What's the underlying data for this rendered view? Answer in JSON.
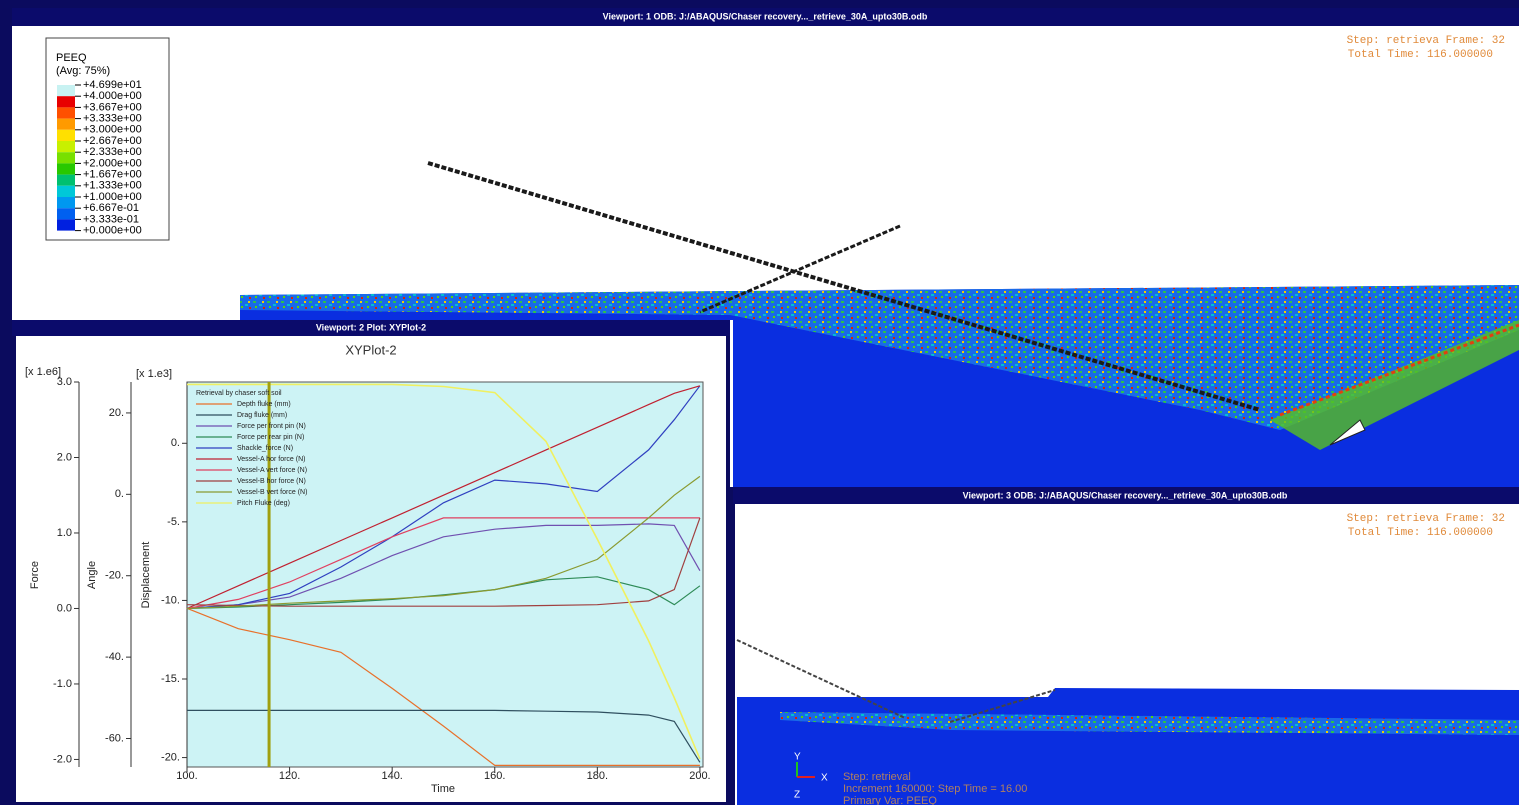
{
  "viewport1": {
    "title": "Viewport: 1    ODB: J:/ABAQUS/Chaser recovery..._retrieve_30A_upto30B.odb",
    "step": "Step: retrieva Frame: 32",
    "time": "Total Time: 116.000000"
  },
  "legend": {
    "title": "PEEQ",
    "subtitle": "(Avg: 75%)",
    "levels": [
      "+4.699e+01",
      "+4.000e+00",
      "+3.667e+00",
      "+3.333e+00",
      "+3.000e+00",
      "+2.667e+00",
      "+2.333e+00",
      "+2.000e+00",
      "+1.667e+00",
      "+1.333e+00",
      "+1.000e+00",
      "+6.667e-01",
      "+3.333e-01",
      "+0.000e+00"
    ],
    "colors": [
      "#c8f2f2",
      "#e80000",
      "#ff5000",
      "#ff9a00",
      "#ffe000",
      "#c8f000",
      "#78e000",
      "#28c800",
      "#00c070",
      "#00c8d8",
      "#0098f0",
      "#0060f0",
      "#0020e0"
    ]
  },
  "viewport2": {
    "title": "Viewport: 2    Plot: XYPlot-2"
  },
  "chart_data": {
    "type": "line",
    "title": "XYPlot-2",
    "x_label": "Time",
    "xlim": [
      100,
      200.6
    ],
    "xticks": [
      {
        "value": 100,
        "label": "100."
      },
      {
        "value": 120,
        "label": "120."
      },
      {
        "value": 140,
        "label": "140."
      },
      {
        "value": 160,
        "label": "160."
      },
      {
        "value": 180,
        "label": "180."
      },
      {
        "value": 200,
        "label": "200."
      }
    ],
    "axes": [
      {
        "label": "Force",
        "multiplier": "[x 1.e6]",
        "ylim": [
          -2.1,
          3.0
        ],
        "yticks": [
          {
            "value": 3,
            "label": "3.0"
          },
          {
            "value": 2,
            "label": "2.0"
          },
          {
            "value": 1,
            "label": "1.0"
          },
          {
            "value": 0,
            "label": "0.0"
          },
          {
            "value": -1,
            "label": "-1.0"
          },
          {
            "value": -2,
            "label": "-2.0"
          }
        ]
      },
      {
        "label": "Angle",
        "ylim": [
          -67,
          27.6
        ],
        "yticks": [
          {
            "value": 20,
            "label": "20."
          },
          {
            "value": 0,
            "label": "0."
          },
          {
            "value": -20,
            "label": "-20."
          },
          {
            "value": -40,
            "label": "-40."
          },
          {
            "value": -60,
            "label": "-60."
          }
        ]
      },
      {
        "label": "Displacement",
        "multiplier": "[x 1.e3]",
        "ylim": [
          -20.6,
          3.9
        ],
        "yticks": [
          {
            "value": 0,
            "label": "0."
          },
          {
            "value": -5,
            "label": "-5."
          },
          {
            "value": -10,
            "label": "-10."
          },
          {
            "value": -15,
            "label": "-15."
          },
          {
            "value": -20,
            "label": "-20."
          }
        ]
      }
    ],
    "legend_title": "Retrieval by chaser soft soil",
    "background": "#cdf3f5",
    "cursor_x": 116,
    "cursor_color": "#a0a010",
    "x": [
      100,
      110,
      120,
      130,
      140,
      150,
      160,
      170,
      180,
      190,
      195,
      200
    ],
    "series": [
      {
        "name": "Depth fluke (mm)",
        "color": "#e8702a",
        "axis": 2,
        "values": [
          -10.5,
          -11.8,
          -12.5,
          -13.3,
          -15.6,
          -18.0,
          -20.5,
          -20.5,
          -20.5,
          -20.5,
          -20.5,
          -20.5
        ]
      },
      {
        "name": "Drag fluke (mm)",
        "color": "#2f4f5f",
        "axis": 2,
        "values": [
          -17.0,
          -17.0,
          -17.0,
          -17.0,
          -17.0,
          -17.0,
          -17.0,
          -17.05,
          -17.1,
          -17.3,
          -17.7,
          -20.3
        ]
      },
      {
        "name": "Force per front pin (N)",
        "color": "#7050b0",
        "axis": 0,
        "values": [
          0,
          0.05,
          0.15,
          0.4,
          0.7,
          0.95,
          1.05,
          1.1,
          1.1,
          1.12,
          1.1,
          0.5
        ]
      },
      {
        "name": "Force per rear pin (N)",
        "color": "#2e8b57",
        "axis": 0,
        "values": [
          0,
          0.02,
          0.05,
          0.08,
          0.12,
          0.18,
          0.25,
          0.38,
          0.42,
          0.25,
          0.05,
          0.3
        ]
      },
      {
        "name": "Shackle_force (N)",
        "color": "#3040c0",
        "axis": 0,
        "values": [
          0,
          0.05,
          0.2,
          0.55,
          0.95,
          1.4,
          1.7,
          1.65,
          1.55,
          2.1,
          2.5,
          2.95
        ]
      },
      {
        "name": "Vessel-A hor force (N)",
        "color": "#c02030",
        "axis": 0,
        "values": [
          0,
          0.3,
          0.6,
          0.9,
          1.2,
          1.5,
          1.8,
          2.1,
          2.4,
          2.7,
          2.85,
          2.95
        ]
      },
      {
        "name": "Vessel-A vert force (N)",
        "color": "#e04060",
        "axis": 0,
        "values": [
          0,
          0.12,
          0.35,
          0.65,
          0.95,
          1.2,
          1.2,
          1.2,
          1.2,
          1.2,
          1.2,
          1.2
        ]
      },
      {
        "name": "Vessel-B hor force (N)",
        "color": "#a04040",
        "axis": 0,
        "values": [
          0.05,
          0.04,
          0.03,
          0.03,
          0.03,
          0.03,
          0.03,
          0.04,
          0.05,
          0.1,
          0.25,
          1.2
        ]
      },
      {
        "name": "Vessel-B vert force (N)",
        "color": "#8a9a30",
        "axis": 0,
        "values": [
          0,
          0.03,
          0.07,
          0.1,
          0.13,
          0.17,
          0.25,
          0.4,
          0.65,
          1.2,
          1.5,
          1.75
        ]
      },
      {
        "name": "Pitch Fluke (deg)",
        "color": "#f0f060",
        "axis": 1,
        "values": [
          27,
          27,
          27,
          27,
          27,
          26.5,
          25,
          13,
          -11,
          -36,
          -50,
          -65
        ]
      }
    ]
  },
  "viewport3": {
    "title": "Viewport: 3    ODB: J:/ABAQUS/Chaser recovery..._retrieve_30A_upto30B.odb",
    "step": "Step: retrieva Frame: 32",
    "time": "Total Time: 116.000000",
    "info": [
      "Step: retrieval",
      "Increment    160000: Step Time =    16.00",
      "Primary Var: PEEQ"
    ],
    "triad": [
      "Y",
      "X",
      "Z"
    ]
  }
}
